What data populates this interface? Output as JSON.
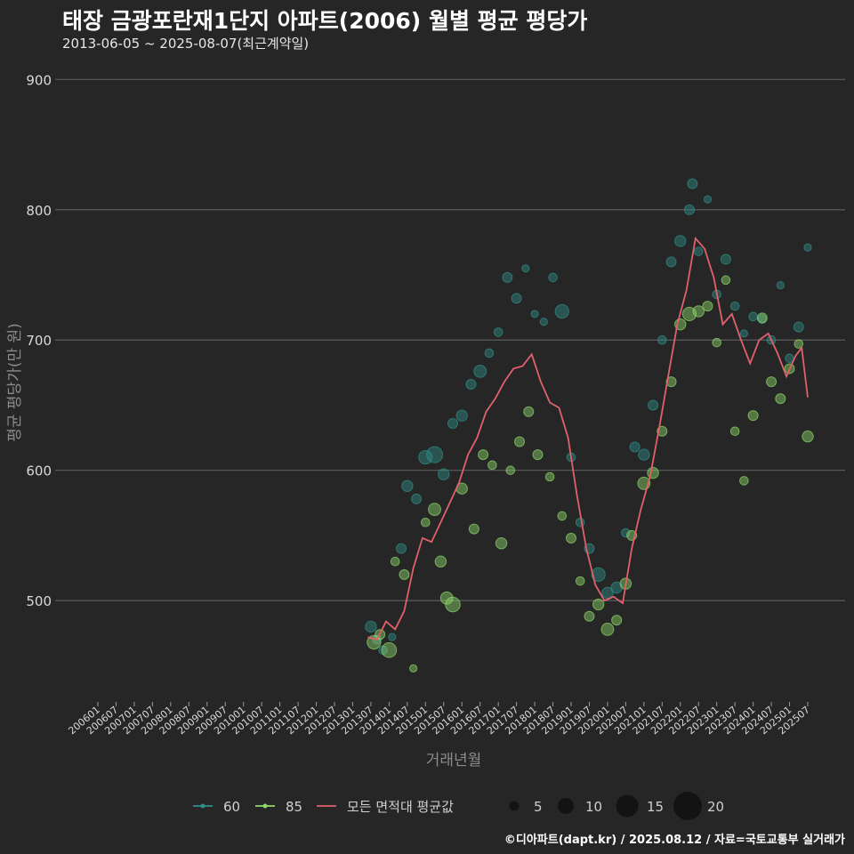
{
  "title": "태장 금광포란재1단지 아파트(2006) 월별 평균 평당가",
  "subtitle": "2013-06-05 ~ 2025-08-07(최근계약일)",
  "caption": "©디아파트(dapt.kr) / 2025.08.12 / 자료=국토교통부 실거래가",
  "colors": {
    "background": "#262626",
    "grid": "#5c5c5c",
    "series_60": "#2f8f8a",
    "series_85": "#8fd86a",
    "avg_line": "#e0616a"
  },
  "chart_data": {
    "type": "scatter",
    "xlabel": "거래년월",
    "ylabel": "평균 평당가(만 원)",
    "ylim": [
      425,
      920
    ],
    "yticks": [
      500,
      600,
      700,
      800,
      900
    ],
    "x_range": [
      "2006-01",
      "2025-07"
    ],
    "xticks": [
      "200601",
      "200607",
      "200701",
      "200707",
      "200801",
      "200807",
      "200901",
      "200907",
      "201001",
      "201007",
      "201101",
      "201107",
      "201201",
      "201207",
      "201301",
      "201307",
      "201401",
      "201407",
      "201501",
      "201507",
      "201601",
      "201607",
      "201701",
      "201707",
      "201801",
      "201807",
      "201901",
      "201907",
      "202001",
      "202007",
      "202101",
      "202107",
      "202201",
      "202207",
      "202301",
      "202307",
      "202401",
      "202407",
      "202501",
      "202507"
    ],
    "legend": {
      "series": [
        {
          "name": "60",
          "color": "#2f8f8a"
        },
        {
          "name": "85",
          "color": "#8fd86a"
        },
        {
          "name": "모든 면적대 평균값",
          "color": "#e0616a"
        }
      ],
      "sizes": [
        5,
        10,
        15,
        20
      ]
    },
    "series": [
      {
        "name": "60",
        "points": [
          [
            "2013-07",
            480,
            6
          ],
          [
            "2013-09",
            470,
            4
          ],
          [
            "2013-11",
            462,
            4
          ],
          [
            "2014-02",
            472,
            3
          ],
          [
            "2014-05",
            540,
            5
          ],
          [
            "2014-07",
            588,
            6
          ],
          [
            "2014-10",
            578,
            5
          ],
          [
            "2015-01",
            610,
            8
          ],
          [
            "2015-04",
            612,
            10
          ],
          [
            "2015-07",
            597,
            6
          ],
          [
            "2015-10",
            636,
            5
          ],
          [
            "2016-01",
            642,
            6
          ],
          [
            "2016-04",
            666,
            5
          ],
          [
            "2016-07",
            676,
            7
          ],
          [
            "2016-10",
            690,
            4
          ],
          [
            "2017-01",
            706,
            4
          ],
          [
            "2017-04",
            748,
            5
          ],
          [
            "2017-07",
            732,
            5
          ],
          [
            "2017-10",
            755,
            3
          ],
          [
            "2018-01",
            720,
            3
          ],
          [
            "2018-04",
            714,
            3
          ],
          [
            "2018-07",
            748,
            4
          ],
          [
            "2018-10",
            722,
            8
          ],
          [
            "2019-01",
            610,
            4
          ],
          [
            "2019-04",
            560,
            4
          ],
          [
            "2019-07",
            540,
            5
          ],
          [
            "2019-10",
            520,
            8
          ],
          [
            "2020-01",
            506,
            6
          ],
          [
            "2020-04",
            510,
            6
          ],
          [
            "2020-07",
            552,
            4
          ],
          [
            "2020-10",
            618,
            5
          ],
          [
            "2021-01",
            612,
            6
          ],
          [
            "2021-04",
            650,
            5
          ],
          [
            "2021-07",
            700,
            4
          ],
          [
            "2021-10",
            760,
            5
          ],
          [
            "2022-01",
            776,
            6
          ],
          [
            "2022-04",
            800,
            5
          ],
          [
            "2022-05",
            820,
            5
          ],
          [
            "2022-07",
            768,
            4
          ],
          [
            "2022-10",
            808,
            3
          ],
          [
            "2023-01",
            735,
            4
          ],
          [
            "2023-04",
            762,
            5
          ],
          [
            "2023-07",
            726,
            4
          ],
          [
            "2023-10",
            705,
            3
          ],
          [
            "2024-01",
            718,
            4
          ],
          [
            "2024-04",
            716,
            4
          ],
          [
            "2024-07",
            700,
            4
          ],
          [
            "2024-10",
            742,
            3
          ],
          [
            "2025-01",
            686,
            4
          ],
          [
            "2025-04",
            710,
            5
          ],
          [
            "2025-07",
            771,
            3
          ]
        ]
      },
      {
        "name": "85",
        "points": [
          [
            "2013-08",
            468,
            8
          ],
          [
            "2013-10",
            474,
            5
          ],
          [
            "2014-01",
            462,
            9
          ],
          [
            "2014-03",
            530,
            4
          ],
          [
            "2014-06",
            520,
            5
          ],
          [
            "2014-09",
            448,
            3
          ],
          [
            "2015-01",
            560,
            4
          ],
          [
            "2015-04",
            570,
            7
          ],
          [
            "2015-06",
            530,
            6
          ],
          [
            "2015-08",
            502,
            7
          ],
          [
            "2015-10",
            497,
            9
          ],
          [
            "2016-01",
            586,
            6
          ],
          [
            "2016-05",
            555,
            5
          ],
          [
            "2016-08",
            612,
            5
          ],
          [
            "2016-11",
            604,
            4
          ],
          [
            "2017-02",
            544,
            6
          ],
          [
            "2017-05",
            600,
            4
          ],
          [
            "2017-08",
            622,
            5
          ],
          [
            "2017-11",
            645,
            5
          ],
          [
            "2018-02",
            612,
            5
          ],
          [
            "2018-06",
            595,
            4
          ],
          [
            "2018-10",
            565,
            4
          ],
          [
            "2019-01",
            548,
            5
          ],
          [
            "2019-04",
            515,
            4
          ],
          [
            "2019-07",
            488,
            5
          ],
          [
            "2019-10",
            497,
            6
          ],
          [
            "2020-01",
            478,
            7
          ],
          [
            "2020-04",
            485,
            5
          ],
          [
            "2020-07",
            513,
            6
          ],
          [
            "2020-09",
            550,
            5
          ],
          [
            "2021-01",
            590,
            7
          ],
          [
            "2021-04",
            598,
            6
          ],
          [
            "2021-07",
            630,
            5
          ],
          [
            "2021-10",
            668,
            5
          ],
          [
            "2022-01",
            712,
            6
          ],
          [
            "2022-04",
            720,
            8
          ],
          [
            "2022-07",
            722,
            6
          ],
          [
            "2022-10",
            726,
            5
          ],
          [
            "2023-01",
            698,
            4
          ],
          [
            "2023-04",
            746,
            4
          ],
          [
            "2023-07",
            630,
            4
          ],
          [
            "2023-10",
            592,
            4
          ],
          [
            "2024-01",
            642,
            5
          ],
          [
            "2024-04",
            717,
            5
          ],
          [
            "2024-07",
            668,
            5
          ],
          [
            "2024-10",
            655,
            5
          ],
          [
            "2025-01",
            678,
            5
          ],
          [
            "2025-04",
            697,
            4
          ],
          [
            "2025-07",
            626,
            6
          ]
        ]
      },
      {
        "name": "모든 면적대 평균값",
        "points": [
          [
            "2013-06",
            472
          ],
          [
            "2013-09",
            470
          ],
          [
            "2013-12",
            484
          ],
          [
            "2014-03",
            478
          ],
          [
            "2014-06",
            492
          ],
          [
            "2014-09",
            525
          ],
          [
            "2014-12",
            548
          ],
          [
            "2015-03",
            545
          ],
          [
            "2015-06",
            560
          ],
          [
            "2015-09",
            575
          ],
          [
            "2015-12",
            590
          ],
          [
            "2016-03",
            612
          ],
          [
            "2016-06",
            625
          ],
          [
            "2016-09",
            645
          ],
          [
            "2016-12",
            655
          ],
          [
            "2017-03",
            668
          ],
          [
            "2017-06",
            678
          ],
          [
            "2017-09",
            680
          ],
          [
            "2017-12",
            689
          ],
          [
            "2018-03",
            668
          ],
          [
            "2018-06",
            652
          ],
          [
            "2018-09",
            648
          ],
          [
            "2018-12",
            625
          ],
          [
            "2019-03",
            580
          ],
          [
            "2019-06",
            540
          ],
          [
            "2019-09",
            512
          ],
          [
            "2019-12",
            500
          ],
          [
            "2020-03",
            503
          ],
          [
            "2020-06",
            498
          ],
          [
            "2020-09",
            540
          ],
          [
            "2020-12",
            570
          ],
          [
            "2021-03",
            595
          ],
          [
            "2021-06",
            632
          ],
          [
            "2021-09",
            672
          ],
          [
            "2021-12",
            712
          ],
          [
            "2022-03",
            738
          ],
          [
            "2022-06",
            778
          ],
          [
            "2022-09",
            770
          ],
          [
            "2022-12",
            748
          ],
          [
            "2023-03",
            712
          ],
          [
            "2023-06",
            720
          ],
          [
            "2023-09",
            700
          ],
          [
            "2023-12",
            682
          ],
          [
            "2024-03",
            700
          ],
          [
            "2024-06",
            705
          ],
          [
            "2024-09",
            690
          ],
          [
            "2024-12",
            672
          ],
          [
            "2025-03",
            688
          ],
          [
            "2025-05",
            694
          ],
          [
            "2025-07",
            656
          ]
        ]
      }
    ]
  }
}
